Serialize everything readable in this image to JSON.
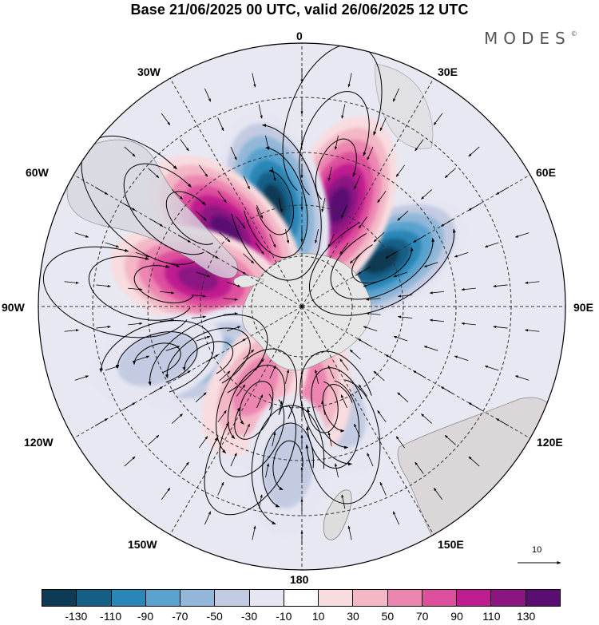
{
  "title": "Base 21/06/2025 00 UTC, valid 26/06/2025 12 UTC",
  "logo": "MODES",
  "logo_mark": "©",
  "longitude_labels": {
    "lon_0": "0",
    "lon_30E": "30E",
    "lon_60E": "60E",
    "lon_90E": "90E",
    "lon_120E": "120E",
    "lon_150E": "150E",
    "lon_180": "180",
    "lon_150W": "150W",
    "lon_120W": "120W",
    "lon_90W": "90W",
    "lon_60W": "60W",
    "lon_30W": "30W"
  },
  "reference_vector_label": "10",
  "colorbar": {
    "colors": [
      "#0d3b55",
      "#155f86",
      "#2a86b6",
      "#5aa3cf",
      "#92b7d8",
      "#c3cbe2",
      "#e6e6f2",
      "#ffffff",
      "#f8dcdf",
      "#f3b7c6",
      "#ec86b1",
      "#dd4f9c",
      "#bf1d8f",
      "#8c1582",
      "#5a0e72"
    ],
    "tick_labels": [
      "-130",
      "-110",
      "-90",
      "-70",
      "-50",
      "-30",
      "-10",
      "10",
      "30",
      "50",
      "70",
      "90",
      "110",
      "130"
    ]
  },
  "map": {
    "projection": "south-polar-stereographic",
    "antarctica_color": "#e6e6e6",
    "anomaly_centers": [
      {
        "sign": "negative",
        "lon_deg": 60,
        "lat_band": "60S",
        "value": -140
      },
      {
        "sign": "positive",
        "lon_deg": 20,
        "lat_band": "55S",
        "value": 140
      },
      {
        "sign": "negative",
        "lon_deg": -15,
        "lat_band": "55S",
        "value": -140
      },
      {
        "sign": "positive",
        "lon_deg": -45,
        "lat_band": "55S",
        "value": 140
      },
      {
        "sign": "positive",
        "lon_deg": -75,
        "lat_band": "55S",
        "value": 120
      },
      {
        "sign": "negative",
        "lon_deg": -120,
        "lat_band": "55S",
        "value": -60
      },
      {
        "sign": "negative",
        "lon_deg": -155,
        "lat_band": "55S",
        "value": -30
      },
      {
        "sign": "negative",
        "lon_deg": 160,
        "lat_band": "55S",
        "value": -30
      },
      {
        "sign": "positive",
        "lon_deg": 175,
        "lat_band": "65S",
        "value": 50
      },
      {
        "sign": "positive",
        "lon_deg": -150,
        "lat_band": "60S",
        "value": 60
      },
      {
        "sign": "negative",
        "lon_deg": -110,
        "lat_band": "40S",
        "value": -30
      },
      {
        "sign": "negative",
        "lon_deg": -175,
        "lat_band": "38S",
        "value": -40
      }
    ]
  }
}
